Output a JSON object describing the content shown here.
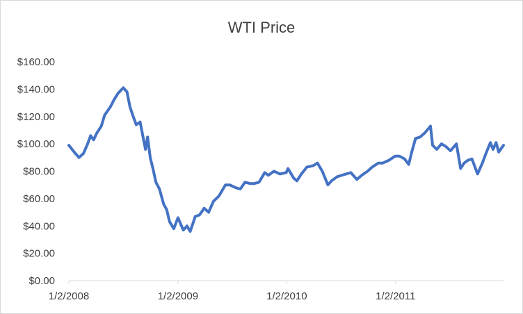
{
  "chart_data": {
    "type": "line",
    "title": "WTI Price",
    "xlabel": "",
    "ylabel": "",
    "ylim": [
      0,
      160
    ],
    "y_ticks": [
      0,
      20,
      40,
      60,
      80,
      100,
      120,
      140,
      160
    ],
    "y_tick_labels": [
      "$0.00",
      "$20.00",
      "$40.00",
      "$60.00",
      "$80.00",
      "$100.00",
      "$120.00",
      "$140.00",
      "$160.00"
    ],
    "xlim": [
      "2008-01-02",
      "2011-12-30"
    ],
    "x_ticks": [
      "2008-01-02",
      "2009-01-02",
      "2010-01-02",
      "2011-01-02"
    ],
    "x_tick_labels": [
      "1/2/2008",
      "1/2/2009",
      "1/2/2010",
      "1/2/2011"
    ],
    "grid": false,
    "legend": "none",
    "line_color": "#4472c4",
    "series": [
      {
        "x": [
          "2008-01-02",
          "2008-01-20",
          "2008-02-05",
          "2008-02-20",
          "2008-03-05",
          "2008-03-15",
          "2008-03-25",
          "2008-04-05",
          "2008-04-20",
          "2008-05-01",
          "2008-05-20",
          "2008-06-01",
          "2008-06-15",
          "2008-07-03",
          "2008-07-15",
          "2008-07-25",
          "2008-08-05",
          "2008-08-15",
          "2008-08-28",
          "2008-09-05",
          "2008-09-15",
          "2008-09-22",
          "2008-10-01",
          "2008-10-10",
          "2008-10-20",
          "2008-11-01",
          "2008-11-15",
          "2008-11-25",
          "2008-12-05",
          "2008-12-19",
          "2009-01-02",
          "2009-01-10",
          "2009-01-20",
          "2009-02-01",
          "2009-02-12",
          "2009-03-01",
          "2009-03-15",
          "2009-03-31",
          "2009-04-15",
          "2009-05-01",
          "2009-05-20",
          "2009-06-10",
          "2009-06-25",
          "2009-07-14",
          "2009-07-30",
          "2009-08-15",
          "2009-09-01",
          "2009-09-15",
          "2009-10-01",
          "2009-10-20",
          "2009-11-01",
          "2009-11-20",
          "2009-12-10",
          "2009-12-31",
          "2010-01-06",
          "2010-01-25",
          "2010-02-05",
          "2010-02-20",
          "2010-03-10",
          "2010-03-31",
          "2010-04-15",
          "2010-05-01",
          "2010-05-20",
          "2010-06-01",
          "2010-06-20",
          "2010-07-05",
          "2010-07-20",
          "2010-08-05",
          "2010-08-25",
          "2010-09-10",
          "2010-09-30",
          "2010-10-15",
          "2010-11-05",
          "2010-11-20",
          "2010-12-10",
          "2010-12-31",
          "2011-01-15",
          "2011-02-01",
          "2011-02-15",
          "2011-02-25",
          "2011-03-10",
          "2011-03-25",
          "2011-04-10",
          "2011-04-29",
          "2011-05-06",
          "2011-05-20",
          "2011-06-05",
          "2011-06-20",
          "2011-07-05",
          "2011-07-25",
          "2011-08-08",
          "2011-08-20",
          "2011-09-01",
          "2011-09-15",
          "2011-10-04",
          "2011-10-20",
          "2011-11-01",
          "2011-11-16",
          "2011-11-25",
          "2011-12-05",
          "2011-12-14",
          "2011-12-30"
        ],
        "y": [
          99,
          94,
          90,
          93,
          100,
          106,
          103,
          108,
          113,
          121,
          127,
          132,
          137,
          141,
          138,
          127,
          120,
          114,
          116,
          107,
          96,
          105,
          90,
          82,
          72,
          67,
          56,
          52,
          43,
          38,
          46,
          42,
          37,
          40,
          36,
          47,
          48,
          53,
          50,
          58,
          62,
          70,
          70,
          68,
          67,
          72,
          71,
          71,
          72,
          79,
          77,
          80,
          78,
          79,
          82,
          75,
          73,
          78,
          83,
          84,
          86,
          80,
          70,
          73,
          76,
          77,
          78,
          79,
          74,
          77,
          80,
          83,
          86,
          86,
          88,
          91,
          91,
          89,
          85,
          94,
          104,
          105,
          108,
          113,
          99,
          96,
          100,
          98,
          95,
          100,
          82,
          86,
          88,
          89,
          78,
          86,
          93,
          101,
          96,
          101,
          94,
          99
        ]
      }
    ]
  }
}
